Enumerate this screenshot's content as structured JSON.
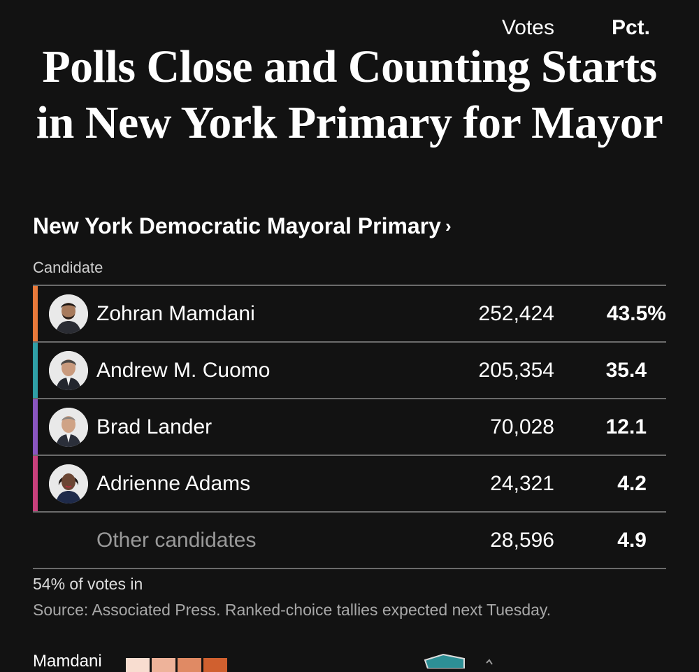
{
  "headline": {
    "line1": "Polls Close and Counting Starts",
    "line2": "in New York Primary for Mayor"
  },
  "race": {
    "title": "New York Democratic Mayoral Primary",
    "chevron": "›"
  },
  "columns": {
    "candidate": "Candidate",
    "votes": "Votes",
    "pct": "Pct."
  },
  "rows": [
    {
      "name": "Zohran Mamdani",
      "votes": "252,424",
      "pct": "43.5%",
      "color": "#e8793a",
      "avatar_icon": "candidate-photo-icon"
    },
    {
      "name": "Andrew M. Cuomo",
      "votes": "205,354",
      "pct": "35.4",
      "color": "#2f9fa6",
      "avatar_icon": "candidate-photo-icon"
    },
    {
      "name": "Brad Lander",
      "votes": "70,028",
      "pct": "12.1",
      "color": "#8a55c0",
      "avatar_icon": "candidate-photo-icon"
    },
    {
      "name": "Adrienne Adams",
      "votes": "24,321",
      "pct": "4.2",
      "color": "#c8407c",
      "avatar_icon": "candidate-photo-icon"
    },
    {
      "name": "Other candidates",
      "votes": "28,596",
      "pct": "4.9"
    }
  ],
  "footer": {
    "reporting": "54% of votes in",
    "source": "Source: Associated Press. Ranked-choice tallies expected next Tuesday."
  },
  "legend": {
    "label": "Mamdani",
    "swatches": [
      "#f8ddd0",
      "#eeb39a",
      "#e08a64",
      "#d0602f"
    ]
  },
  "map": {
    "fill_color": "#2d8f95"
  }
}
